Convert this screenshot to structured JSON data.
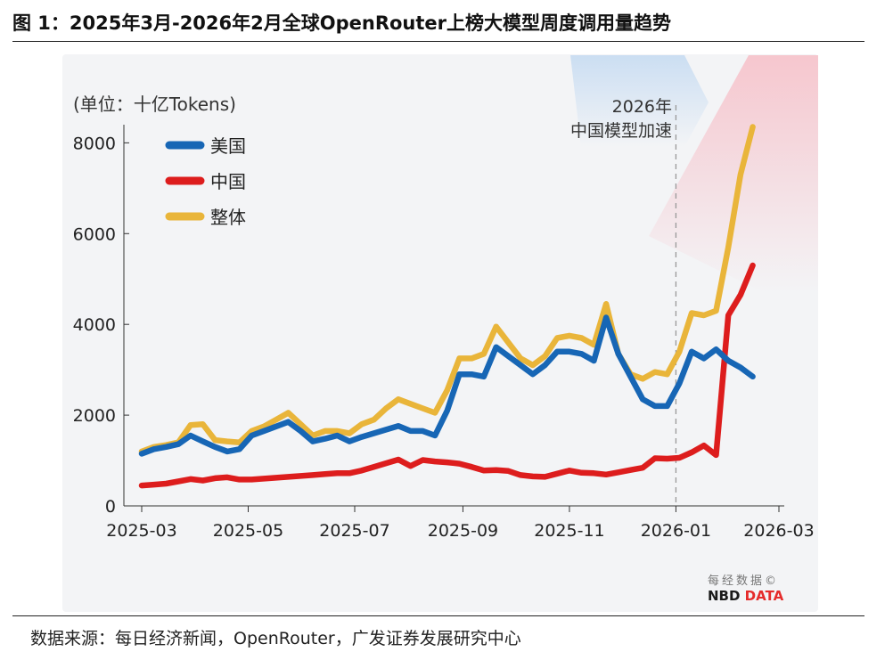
{
  "figure": {
    "title": "图 1：2025年3月-2026年2月全球OpenRouter上榜大模型周度调用量趋势",
    "source": "数据来源：每日经济新闻，OpenRouter，广发证券发展研究中心"
  },
  "watermark": {
    "cn": "每经数据©",
    "en_a": "NBD",
    "en_b": " DATA"
  },
  "chart_data": {
    "type": "line",
    "unit_label": "(单位：十亿Tokens)",
    "ylim": [
      0,
      8400
    ],
    "yticks": [
      0,
      2000,
      4000,
      6000,
      8000
    ],
    "xlim": [
      "2025-03-01",
      "2026-03-01"
    ],
    "xticks": [
      {
        "date": "2025-03-01",
        "label": "2025-03"
      },
      {
        "date": "2025-05-01",
        "label": "2025-05"
      },
      {
        "date": "2025-07-01",
        "label": "2025-07"
      },
      {
        "date": "2025-09-01",
        "label": "2025-09"
      },
      {
        "date": "2025-11-01",
        "label": "2025-11"
      },
      {
        "date": "2026-01-01",
        "label": "2026-01"
      },
      {
        "date": "2026-03-01",
        "label": "2026-03"
      }
    ],
    "annotation": {
      "date": "2026-01-01",
      "line1": "2026年",
      "line2": "中国模型加速"
    },
    "legend": {
      "position": "top-left"
    },
    "grid": false,
    "series": [
      {
        "name": "美国",
        "color": "#1766b5",
        "points": [
          [
            "2025-03-01",
            1150
          ],
          [
            "2025-03-08",
            1250
          ],
          [
            "2025-03-15",
            1300
          ],
          [
            "2025-03-22",
            1360
          ],
          [
            "2025-03-29",
            1550
          ],
          [
            "2025-04-05",
            1420
          ],
          [
            "2025-04-12",
            1300
          ],
          [
            "2025-04-19",
            1200
          ],
          [
            "2025-04-26",
            1250
          ],
          [
            "2025-05-03",
            1550
          ],
          [
            "2025-05-10",
            1650
          ],
          [
            "2025-05-17",
            1750
          ],
          [
            "2025-05-24",
            1850
          ],
          [
            "2025-05-31",
            1650
          ],
          [
            "2025-06-07",
            1420
          ],
          [
            "2025-06-14",
            1480
          ],
          [
            "2025-06-21",
            1550
          ],
          [
            "2025-06-28",
            1420
          ],
          [
            "2025-07-05",
            1520
          ],
          [
            "2025-07-12",
            1600
          ],
          [
            "2025-07-19",
            1680
          ],
          [
            "2025-07-26",
            1760
          ],
          [
            "2025-08-02",
            1650
          ],
          [
            "2025-08-09",
            1650
          ],
          [
            "2025-08-16",
            1550
          ],
          [
            "2025-08-23",
            2100
          ],
          [
            "2025-08-30",
            2900
          ],
          [
            "2025-09-06",
            2900
          ],
          [
            "2025-09-13",
            2850
          ],
          [
            "2025-09-20",
            3500
          ],
          [
            "2025-09-27",
            3300
          ],
          [
            "2025-10-04",
            3100
          ],
          [
            "2025-10-11",
            2900
          ],
          [
            "2025-10-18",
            3100
          ],
          [
            "2025-10-25",
            3400
          ],
          [
            "2025-11-01",
            3400
          ],
          [
            "2025-11-08",
            3350
          ],
          [
            "2025-11-15",
            3200
          ],
          [
            "2025-11-22",
            4150
          ],
          [
            "2025-11-29",
            3350
          ],
          [
            "2025-12-06",
            2850
          ],
          [
            "2025-12-13",
            2350
          ],
          [
            "2025-12-20",
            2200
          ],
          [
            "2025-12-27",
            2200
          ],
          [
            "2026-01-03",
            2700
          ],
          [
            "2026-01-10",
            3400
          ],
          [
            "2026-01-17",
            3250
          ],
          [
            "2026-01-24",
            3450
          ],
          [
            "2026-01-31",
            3200
          ],
          [
            "2026-02-07",
            3050
          ],
          [
            "2026-02-14",
            2850
          ]
        ]
      },
      {
        "name": "中国",
        "color": "#dd1d1d",
        "points": [
          [
            "2025-03-01",
            450
          ],
          [
            "2025-03-08",
            470
          ],
          [
            "2025-03-15",
            490
          ],
          [
            "2025-03-22",
            540
          ],
          [
            "2025-03-29",
            590
          ],
          [
            "2025-04-05",
            560
          ],
          [
            "2025-04-12",
            610
          ],
          [
            "2025-04-19",
            630
          ],
          [
            "2025-04-26",
            580
          ],
          [
            "2025-05-03",
            580
          ],
          [
            "2025-05-10",
            600
          ],
          [
            "2025-05-17",
            620
          ],
          [
            "2025-05-24",
            640
          ],
          [
            "2025-05-31",
            660
          ],
          [
            "2025-06-07",
            680
          ],
          [
            "2025-06-14",
            700
          ],
          [
            "2025-06-21",
            720
          ],
          [
            "2025-06-28",
            720
          ],
          [
            "2025-07-05",
            780
          ],
          [
            "2025-07-12",
            860
          ],
          [
            "2025-07-19",
            940
          ],
          [
            "2025-07-26",
            1020
          ],
          [
            "2025-08-02",
            880
          ],
          [
            "2025-08-09",
            1010
          ],
          [
            "2025-08-16",
            980
          ],
          [
            "2025-08-23",
            960
          ],
          [
            "2025-08-30",
            930
          ],
          [
            "2025-09-06",
            860
          ],
          [
            "2025-09-13",
            780
          ],
          [
            "2025-09-20",
            790
          ],
          [
            "2025-09-27",
            770
          ],
          [
            "2025-10-04",
            680
          ],
          [
            "2025-10-11",
            650
          ],
          [
            "2025-10-18",
            640
          ],
          [
            "2025-10-25",
            710
          ],
          [
            "2025-11-01",
            780
          ],
          [
            "2025-11-08",
            730
          ],
          [
            "2025-11-15",
            720
          ],
          [
            "2025-11-22",
            690
          ],
          [
            "2025-11-29",
            740
          ],
          [
            "2025-12-06",
            790
          ],
          [
            "2025-12-13",
            840
          ],
          [
            "2025-12-20",
            1050
          ],
          [
            "2025-12-27",
            1040
          ],
          [
            "2026-01-03",
            1060
          ],
          [
            "2026-01-10",
            1180
          ],
          [
            "2026-01-17",
            1330
          ],
          [
            "2026-01-24",
            1120
          ],
          [
            "2026-01-31",
            4200
          ],
          [
            "2026-02-07",
            4650
          ],
          [
            "2026-02-14",
            5300
          ]
        ]
      },
      {
        "name": "整体",
        "color": "#e9b53a",
        "points": [
          [
            "2025-03-01",
            1200
          ],
          [
            "2025-03-08",
            1300
          ],
          [
            "2025-03-15",
            1340
          ],
          [
            "2025-03-22",
            1400
          ],
          [
            "2025-03-29",
            1780
          ],
          [
            "2025-04-05",
            1800
          ],
          [
            "2025-04-12",
            1450
          ],
          [
            "2025-04-19",
            1420
          ],
          [
            "2025-04-26",
            1400
          ],
          [
            "2025-05-03",
            1650
          ],
          [
            "2025-05-10",
            1750
          ],
          [
            "2025-05-17",
            1900
          ],
          [
            "2025-05-24",
            2050
          ],
          [
            "2025-05-31",
            1800
          ],
          [
            "2025-06-07",
            1550
          ],
          [
            "2025-06-14",
            1650
          ],
          [
            "2025-06-21",
            1650
          ],
          [
            "2025-06-28",
            1600
          ],
          [
            "2025-07-05",
            1800
          ],
          [
            "2025-07-12",
            1900
          ],
          [
            "2025-07-19",
            2150
          ],
          [
            "2025-07-26",
            2350
          ],
          [
            "2025-08-02",
            2250
          ],
          [
            "2025-08-09",
            2150
          ],
          [
            "2025-08-16",
            2050
          ],
          [
            "2025-08-23",
            2550
          ],
          [
            "2025-08-30",
            3250
          ],
          [
            "2025-09-06",
            3250
          ],
          [
            "2025-09-13",
            3350
          ],
          [
            "2025-09-20",
            3950
          ],
          [
            "2025-09-27",
            3600
          ],
          [
            "2025-10-04",
            3250
          ],
          [
            "2025-10-11",
            3100
          ],
          [
            "2025-10-18",
            3300
          ],
          [
            "2025-10-25",
            3700
          ],
          [
            "2025-11-01",
            3750
          ],
          [
            "2025-11-08",
            3700
          ],
          [
            "2025-11-15",
            3550
          ],
          [
            "2025-11-22",
            4450
          ],
          [
            "2025-11-29",
            3350
          ],
          [
            "2025-12-06",
            2900
          ],
          [
            "2025-12-13",
            2800
          ],
          [
            "2025-12-20",
            2950
          ],
          [
            "2025-12-27",
            2900
          ],
          [
            "2026-01-03",
            3400
          ],
          [
            "2026-01-10",
            4250
          ],
          [
            "2026-01-17",
            4200
          ],
          [
            "2026-01-24",
            4300
          ],
          [
            "2026-01-31",
            5700
          ],
          [
            "2026-02-07",
            7300
          ],
          [
            "2026-02-14",
            8350
          ]
        ]
      }
    ]
  }
}
